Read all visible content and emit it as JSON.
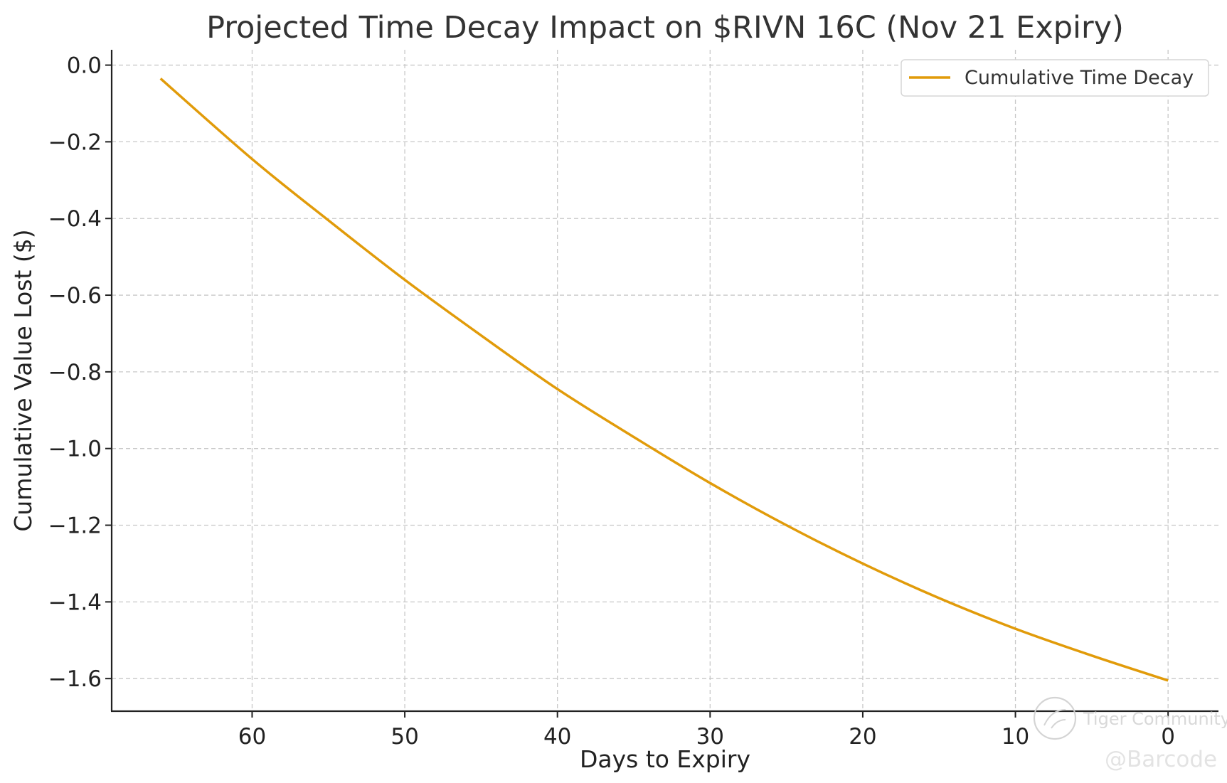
{
  "chart_data": {
    "type": "line",
    "title": "Projected Time Decay Impact on $RIVN 16C (Nov 21 Expiry)",
    "xlabel": "Days to Expiry",
    "ylabel": "Cumulative Value Lost ($)",
    "x_inverted": true,
    "xlim": [
      69.2,
      -3.3
    ],
    "ylim": [
      -1.685,
      0.04
    ],
    "xticks": [
      60,
      50,
      40,
      30,
      20,
      10,
      0
    ],
    "xtick_labels": [
      "60",
      "50",
      "40",
      "30",
      "20",
      "10",
      "0"
    ],
    "yticks": [
      0.0,
      -0.2,
      -0.4,
      -0.6,
      -0.8,
      -1.0,
      -1.2,
      -1.4,
      -1.6
    ],
    "ytick_labels": [
      "0.0",
      "−0.2",
      "−0.4",
      "−0.6",
      "−0.8",
      "−1.0",
      "−1.2",
      "−1.4",
      "−1.6"
    ],
    "grid": true,
    "legend_position": "top-right",
    "series": [
      {
        "name": "Cumulative Time Decay",
        "color": "#E19B0A",
        "x": [
          66,
          60,
          55,
          50,
          45,
          40,
          35,
          30,
          25,
          20,
          15,
          10,
          5,
          0
        ],
        "y": [
          -0.035,
          -0.245,
          -0.405,
          -0.56,
          -0.705,
          -0.845,
          -0.97,
          -1.09,
          -1.2,
          -1.3,
          -1.39,
          -1.47,
          -1.54,
          -1.605
        ]
      }
    ]
  },
  "watermark": {
    "brand": "Tiger Community",
    "handle": "@Barcode"
  }
}
